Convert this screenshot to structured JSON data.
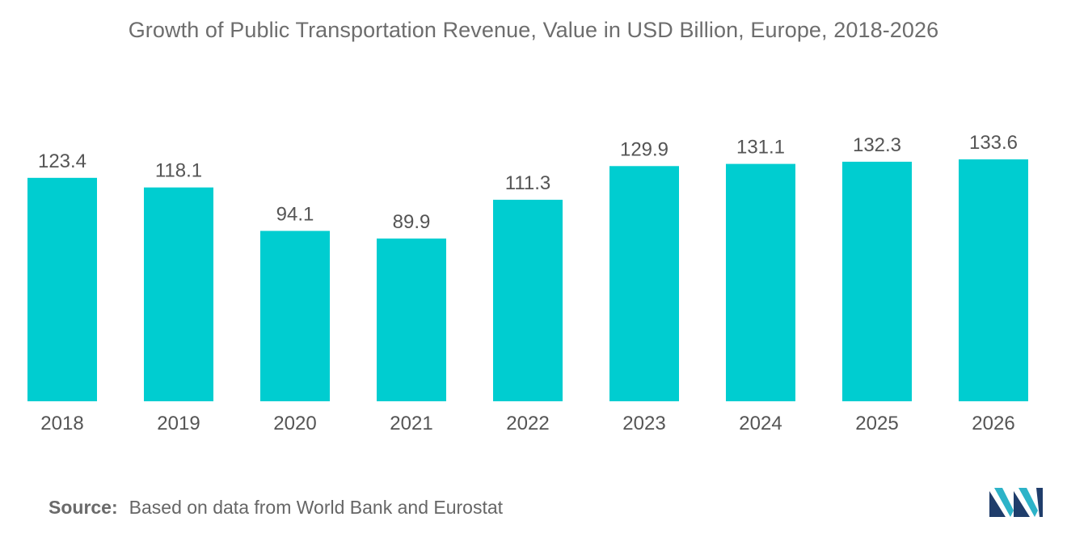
{
  "title": "Growth of Public Transportation Revenue, Value in USD Billion, Europe, 2018-2026",
  "source": {
    "label": "Source:",
    "text": "Based on data from World Bank and Eurostat"
  },
  "logo_icon": "mordor-intelligence-logo",
  "colors": {
    "bar": "#00cdd0",
    "label_text": "#555555",
    "title_text": "#6d6d6d"
  },
  "chart_data": {
    "type": "bar",
    "title": "Growth of Public Transportation Revenue, Value in USD Billion, Europe, 2018-2026",
    "categories": [
      "2018",
      "2019",
      "2020",
      "2021",
      "2022",
      "2023",
      "2024",
      "2025",
      "2026"
    ],
    "values": [
      123.4,
      118.1,
      94.1,
      89.9,
      111.3,
      129.9,
      131.1,
      132.3,
      133.6
    ],
    "data_labels": [
      "123.4",
      "118.1",
      "94.1",
      "89.9",
      "111.3",
      "129.9",
      "131.1",
      "132.3",
      "133.6"
    ],
    "xlabel": "",
    "ylabel": "",
    "ylim": [
      0,
      133.6
    ],
    "grid": false,
    "legend": "none",
    "y_axis_visible": false
  }
}
